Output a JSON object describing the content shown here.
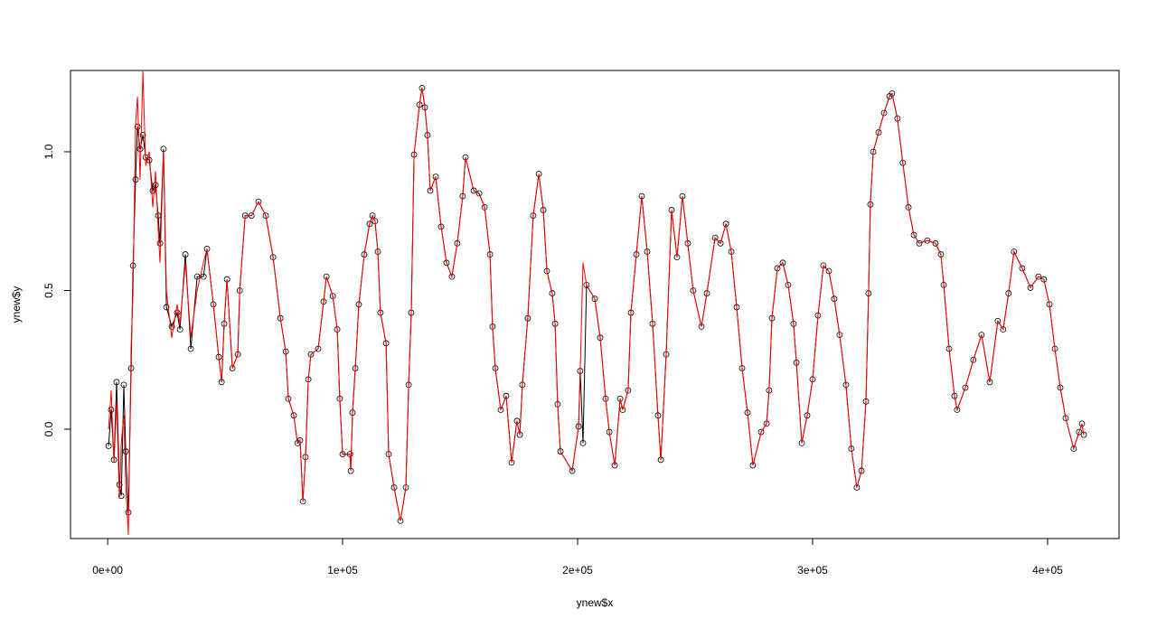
{
  "chart_data": {
    "type": "line",
    "xlabel": "ynew$x",
    "ylabel": "ynew$y",
    "xlim": [
      -15800,
      430400
    ],
    "ylim": [
      -0.394,
      1.293
    ],
    "xticks": [
      {
        "value": 0,
        "label": "0e+00"
      },
      {
        "value": 100000,
        "label": "1e+05"
      },
      {
        "value": 200000,
        "label": "2e+05"
      },
      {
        "value": 300000,
        "label": "3e+05"
      },
      {
        "value": 400000,
        "label": "4e+05"
      }
    ],
    "yticks": [
      {
        "value": 0,
        "label": "0.0"
      },
      {
        "value": 0.5,
        "label": "0.5"
      },
      {
        "value": 1,
        "label": "1.0"
      }
    ],
    "x": [
      400,
      1500,
      2700,
      3800,
      5000,
      5800,
      6900,
      7700,
      8800,
      10000,
      10800,
      11900,
      12700,
      13800,
      15000,
      16200,
      17700,
      19200,
      20400,
      21500,
      22300,
      23800,
      25000,
      27300,
      29600,
      30800,
      33100,
      35400,
      38100,
      40800,
      42300,
      45000,
      47300,
      48500,
      49600,
      50800,
      53100,
      55400,
      56200,
      58500,
      61200,
      64200,
      67300,
      70400,
      73500,
      75800,
      76900,
      79200,
      80800,
      81900,
      83100,
      84200,
      85400,
      86500,
      89600,
      91900,
      93100,
      95800,
      97700,
      98800,
      100000,
      103100,
      103500,
      104200,
      105400,
      106900,
      109200,
      111500,
      112700,
      113800,
      115000,
      116100,
      118500,
      119600,
      121900,
      124600,
      126900,
      128100,
      129200,
      130400,
      132700,
      133800,
      135000,
      136100,
      137300,
      139600,
      141900,
      144200,
      146500,
      148800,
      151100,
      152300,
      155800,
      158100,
      160400,
      162700,
      163800,
      165000,
      167300,
      169600,
      171900,
      174200,
      175400,
      176500,
      178800,
      181100,
      183500,
      185400,
      186900,
      189200,
      190400,
      191500,
      192700,
      197700,
      200400,
      201100,
      202300,
      203800,
      207300,
      209600,
      211900,
      213500,
      215800,
      218100,
      219200,
      221500,
      222700,
      225000,
      227300,
      229600,
      231900,
      234200,
      235400,
      237700,
      240000,
      242300,
      244600,
      246900,
      249200,
      252700,
      255000,
      258500,
      260800,
      263100,
      265400,
      267700,
      270000,
      272300,
      274600,
      278100,
      280400,
      281500,
      282700,
      285000,
      287300,
      289600,
      291900,
      293100,
      295400,
      297700,
      300000,
      302300,
      304600,
      306900,
      309200,
      311500,
      314200,
      316500,
      318800,
      320800,
      322700,
      323800,
      324600,
      325800,
      328100,
      330400,
      332700,
      333800,
      336100,
      338400,
      340800,
      343100,
      345400,
      348800,
      352300,
      354600,
      355800,
      358100,
      360400,
      361500,
      365000,
      368400,
      371900,
      375400,
      378800,
      381100,
      383400,
      385700,
      389200,
      392700,
      396100,
      398400,
      400800,
      403100,
      405400,
      407700,
      411100,
      413400,
      414600,
      415400
    ],
    "series": [
      {
        "color": "#000000",
        "marker": "circle",
        "values": [
          -0.06,
          0.07,
          -0.11,
          0.17,
          -0.2,
          -0.24,
          0.16,
          -0.08,
          -0.3,
          0.22,
          0.59,
          0.9,
          1.09,
          1.01,
          1.06,
          0.98,
          0.97,
          0.86,
          0.88,
          0.77,
          0.67,
          1.01,
          0.44,
          0.37,
          0.42,
          0.36,
          0.63,
          0.29,
          0.55,
          0.55,
          0.65,
          0.45,
          0.26,
          0.17,
          0.38,
          0.54,
          0.22,
          0.27,
          0.5,
          0.77,
          0.77,
          0.82,
          0.77,
          0.62,
          0.4,
          0.28,
          0.11,
          0.05,
          -0.05,
          -0.04,
          -0.26,
          -0.1,
          0.18,
          0.27,
          0.29,
          0.46,
          0.55,
          0.48,
          0.36,
          0.11,
          -0.09,
          -0.09,
          -0.15,
          0.06,
          0.22,
          0.45,
          0.63,
          0.74,
          0.77,
          0.75,
          0.64,
          0.42,
          0.31,
          -0.09,
          -0.21,
          -0.33,
          -0.21,
          0.16,
          0.42,
          0.99,
          1.17,
          1.23,
          1.16,
          1.06,
          0.86,
          0.91,
          0.73,
          0.6,
          0.55,
          0.67,
          0.84,
          0.98,
          0.86,
          0.85,
          0.8,
          0.63,
          0.37,
          0.22,
          0.07,
          0.12,
          -0.12,
          0.03,
          -0.02,
          0.16,
          0.4,
          0.77,
          0.92,
          0.79,
          0.57,
          0.49,
          0.38,
          0.09,
          -0.08,
          -0.15,
          0.01,
          0.21,
          -0.05,
          0.52,
          0.47,
          0.33,
          0.11,
          -0.01,
          -0.13,
          0.11,
          0.07,
          0.14,
          0.42,
          0.63,
          0.84,
          0.64,
          0.38,
          0.05,
          -0.11,
          0.27,
          0.79,
          0.62,
          0.84,
          0.67,
          0.5,
          0.37,
          0.49,
          0.69,
          0.67,
          0.74,
          0.64,
          0.44,
          0.22,
          0.06,
          -0.13,
          -0.01,
          0.02,
          0.14,
          0.4,
          0.58,
          0.6,
          0.52,
          0.38,
          0.24,
          -0.05,
          0.05,
          0.18,
          0.41,
          0.59,
          0.57,
          0.47,
          0.34,
          0.16,
          -0.07,
          -0.21,
          -0.15,
          0.1,
          0.49,
          0.81,
          1.0,
          1.07,
          1.14,
          1.2,
          1.21,
          1.12,
          0.96,
          0.8,
          0.7,
          0.67,
          0.68,
          0.67,
          0.63,
          0.52,
          0.29,
          0.12,
          0.07,
          0.15,
          0.25,
          0.34,
          0.17,
          0.39,
          0.36,
          0.49,
          0.64,
          0.58,
          0.51,
          0.55,
          0.54,
          0.45,
          0.29,
          0.15,
          0.04,
          -0.07,
          -0.01,
          0.02,
          -0.02
        ]
      },
      {
        "color": "#ff0000",
        "marker": "none",
        "values": [
          0.0,
          0.14,
          -0.12,
          0.1,
          -0.25,
          -0.05,
          0.05,
          -0.2,
          -0.38,
          0.3,
          0.5,
          1.1,
          1.2,
          0.9,
          1.29,
          0.95,
          1.0,
          0.8,
          0.93,
          0.72,
          0.6,
          1.0,
          0.5,
          0.33,
          0.45,
          0.38,
          0.6,
          0.33,
          0.5,
          0.6,
          0.65,
          0.45,
          0.26,
          0.17,
          0.38,
          0.54,
          0.22,
          0.27,
          0.5,
          0.77,
          0.77,
          0.82,
          0.77,
          0.62,
          0.4,
          0.28,
          0.11,
          0.05,
          -0.05,
          -0.04,
          -0.26,
          -0.1,
          0.18,
          0.27,
          0.29,
          0.46,
          0.55,
          0.48,
          0.36,
          0.11,
          -0.09,
          -0.09,
          -0.15,
          0.06,
          0.22,
          0.45,
          0.63,
          0.74,
          0.77,
          0.75,
          0.64,
          0.42,
          0.31,
          -0.09,
          -0.21,
          -0.33,
          -0.21,
          0.16,
          0.42,
          0.99,
          1.17,
          1.23,
          1.16,
          1.06,
          0.86,
          0.91,
          0.73,
          0.6,
          0.55,
          0.67,
          0.84,
          0.98,
          0.86,
          0.85,
          0.8,
          0.63,
          0.37,
          0.22,
          0.07,
          0.12,
          -0.12,
          0.03,
          -0.02,
          0.16,
          0.4,
          0.77,
          0.92,
          0.79,
          0.57,
          0.49,
          0.38,
          0.09,
          -0.08,
          -0.15,
          0.01,
          0.21,
          0.6,
          0.52,
          0.47,
          0.33,
          0.11,
          -0.01,
          -0.13,
          0.11,
          0.07,
          0.14,
          0.42,
          0.63,
          0.84,
          0.64,
          0.38,
          0.05,
          -0.11,
          0.27,
          0.79,
          0.62,
          0.84,
          0.67,
          0.5,
          0.37,
          0.49,
          0.69,
          0.67,
          0.74,
          0.64,
          0.44,
          0.22,
          0.06,
          -0.13,
          -0.01,
          0.02,
          0.14,
          0.4,
          0.58,
          0.6,
          0.52,
          0.38,
          0.24,
          -0.05,
          0.05,
          0.18,
          0.41,
          0.59,
          0.57,
          0.47,
          0.34,
          0.16,
          -0.07,
          -0.21,
          -0.15,
          0.1,
          0.49,
          0.81,
          1.0,
          1.07,
          1.14,
          1.2,
          1.21,
          1.12,
          0.96,
          0.8,
          0.7,
          0.67,
          0.68,
          0.67,
          0.63,
          0.52,
          0.29,
          0.12,
          0.07,
          0.15,
          0.25,
          0.34,
          0.17,
          0.39,
          0.36,
          0.49,
          0.64,
          0.58,
          0.51,
          0.55,
          0.54,
          0.45,
          0.29,
          0.15,
          0.04,
          -0.07,
          -0.01,
          0.02,
          -0.02
        ]
      }
    ]
  }
}
